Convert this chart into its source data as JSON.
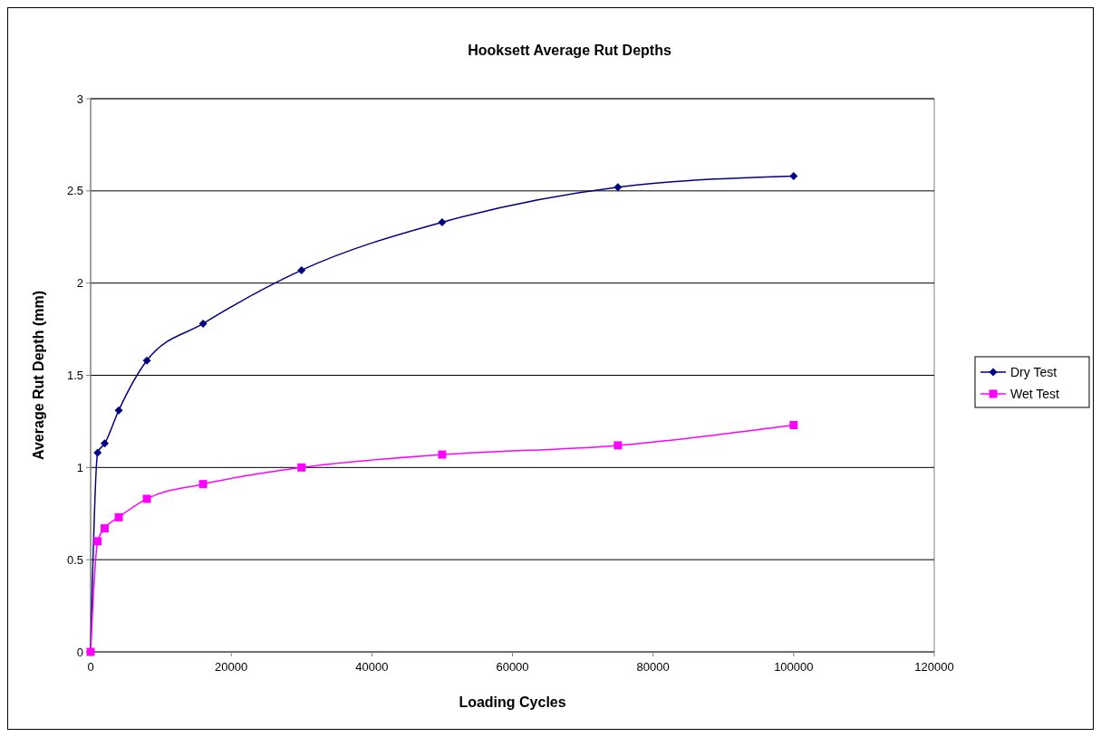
{
  "chart_data": {
    "type": "line",
    "title": "Hooksett Average Rut Depths",
    "xlabel": "Loading Cycles",
    "ylabel": "Average Rut Depth (mm)",
    "x": [
      0,
      1000,
      2000,
      4000,
      8000,
      16000,
      30000,
      50000,
      75000,
      100000
    ],
    "series": [
      {
        "name": "Dry Test",
        "color": "#000080",
        "marker": "diamond",
        "values": [
          0,
          1.08,
          1.13,
          1.31,
          1.58,
          1.78,
          2.07,
          2.33,
          2.52,
          2.58
        ]
      },
      {
        "name": "Wet Test",
        "color": "#ff00ff",
        "marker": "square",
        "values": [
          0,
          0.6,
          0.67,
          0.73,
          0.83,
          0.91,
          1.0,
          1.07,
          1.12,
          1.23
        ]
      }
    ],
    "xlim": [
      0,
      120000
    ],
    "xticks": [
      0,
      20000,
      40000,
      60000,
      80000,
      100000,
      120000
    ],
    "ylim": [
      0,
      3
    ],
    "yticks": [
      0,
      0.5,
      1,
      1.5,
      2,
      2.5,
      3
    ],
    "grid": "y",
    "legend": "right",
    "line_style": "solid"
  }
}
